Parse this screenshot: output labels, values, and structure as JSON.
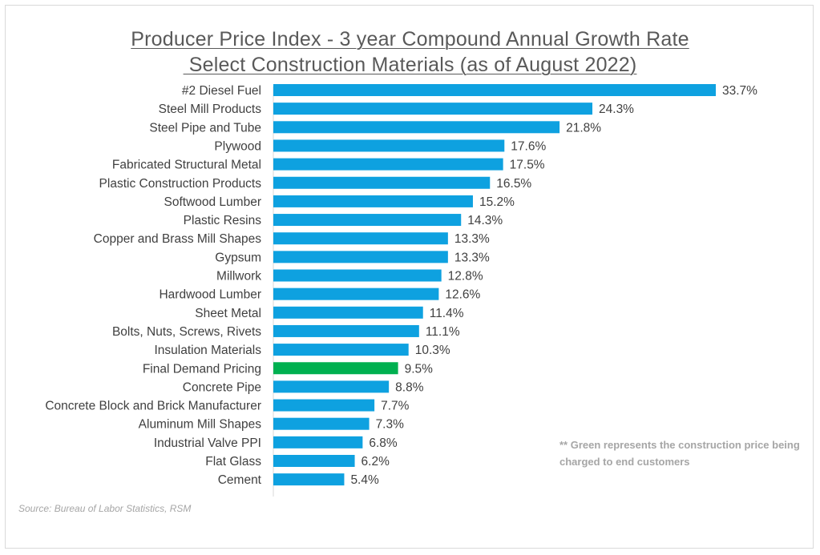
{
  "chart_data": {
    "type": "bar",
    "orientation": "horizontal",
    "title": "Producer Price Index - 3 year Compound Annual Growth Rate",
    "subtitle": " Select Construction Materials (as of August 2022)",
    "categories": [
      "#2 Diesel Fuel",
      "Steel Mill Products",
      "Steel Pipe and Tube",
      "Plywood",
      "Fabricated Structural Metal",
      "Plastic Construction Products",
      "Softwood Lumber",
      "Plastic Resins",
      "Copper and Brass Mill Shapes",
      "Gypsum",
      "Millwork",
      "Hardwood Lumber",
      "Sheet Metal",
      "Bolts, Nuts, Screws, Rivets",
      "Insulation Materials",
      "Final Demand Pricing",
      "Concrete Pipe",
      "Concrete Block and Brick Manufacturer",
      "Aluminum Mill Shapes",
      "Industrial Valve PPI",
      "Flat Glass",
      "Cement"
    ],
    "values": [
      33.7,
      24.3,
      21.8,
      17.6,
      17.5,
      16.5,
      15.2,
      14.3,
      13.3,
      13.3,
      12.8,
      12.6,
      11.4,
      11.1,
      10.3,
      9.5,
      8.8,
      7.7,
      7.3,
      6.8,
      6.2,
      5.4
    ],
    "value_labels": [
      "33.7%",
      "24.3%",
      "21.8%",
      "17.6%",
      "17.5%",
      "16.5%",
      "15.2%",
      "14.3%",
      "13.3%",
      "13.3%",
      "12.8%",
      "12.6%",
      "11.4%",
      "11.1%",
      "10.3%",
      "9.5%",
      "8.8%",
      "7.7%",
      "7.3%",
      "6.8%",
      "6.2%",
      "5.4%"
    ],
    "highlight_index": 15,
    "xlim": [
      0,
      33.7
    ],
    "grid": false,
    "legend": "none",
    "colors": {
      "bar": "#0ea1e0",
      "highlight": "#00b050",
      "axis": "#d9d9d9"
    }
  },
  "note": "** Green represents the construction price being charged to end customers",
  "source": "Source: Bureau of Labor Statistics, RSM"
}
